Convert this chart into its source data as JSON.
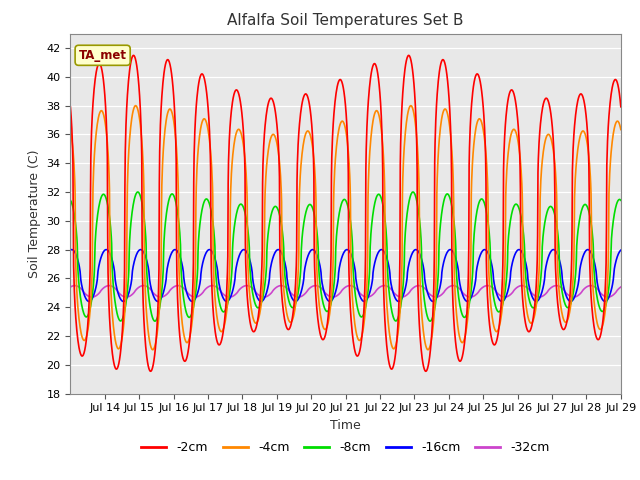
{
  "title": "Alfalfa Soil Temperatures Set B",
  "xlabel": "Time",
  "ylabel": "Soil Temperature (C)",
  "ylim": [
    18,
    43
  ],
  "bg_color": "#e8e8e8",
  "series": {
    "-2cm": {
      "color": "#ff0000",
      "lw": 1.2
    },
    "-4cm": {
      "color": "#ff8800",
      "lw": 1.2
    },
    "-8cm": {
      "color": "#00dd00",
      "lw": 1.2
    },
    "-16cm": {
      "color": "#0000ff",
      "lw": 1.2
    },
    "-32cm": {
      "color": "#cc44cc",
      "lw": 1.2
    }
  },
  "annotation_text": "TA_met",
  "tick_labels": [
    "Jul 14",
    "Jul 15",
    "Jul 16",
    "Jul 17",
    "Jul 18",
    "Jul 19",
    "Jul 20",
    "Jul 21",
    "Jul 22",
    "Jul 23",
    "Jul 24",
    "Jul 25",
    "Jul 26",
    "Jul 27",
    "Jul 28",
    "Jul 29"
  ]
}
